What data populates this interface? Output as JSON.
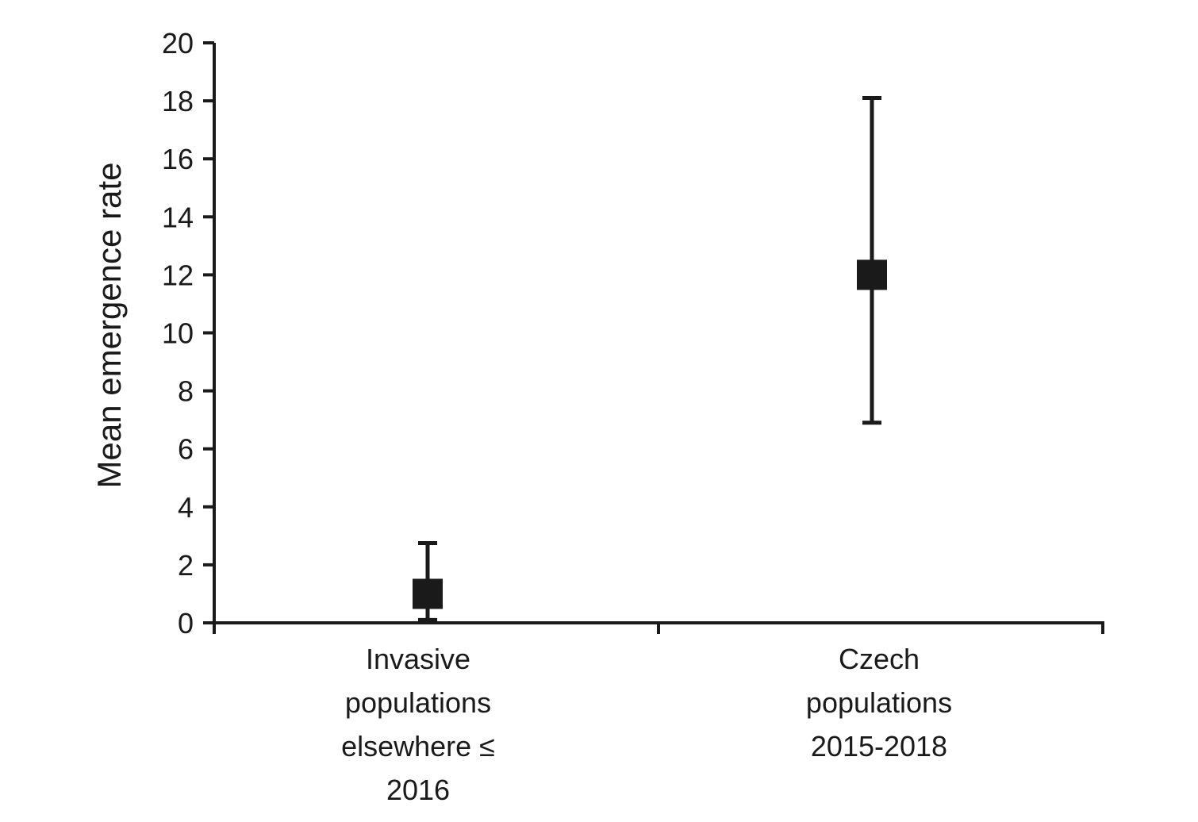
{
  "chart_data": {
    "type": "scatter",
    "title": "",
    "xlabel": "",
    "ylabel": "Mean emergence rate",
    "ylim": [
      0,
      20
    ],
    "y_ticks": [
      0,
      2,
      4,
      6,
      8,
      10,
      12,
      14,
      16,
      18,
      20
    ],
    "grid": false,
    "legend": "none",
    "categories": [
      [
        "Invasive",
        "populations",
        "elsewhere ≤",
        "2016"
      ],
      [
        "Czech",
        "populations",
        "2015-2018"
      ]
    ],
    "series": [
      {
        "values": [
          1.0,
          12.0
        ],
        "error_low": [
          0.1,
          6.9
        ],
        "error_high": [
          2.75,
          18.1
        ]
      }
    ],
    "colors": {
      "ink": "#1a1a1a"
    }
  }
}
